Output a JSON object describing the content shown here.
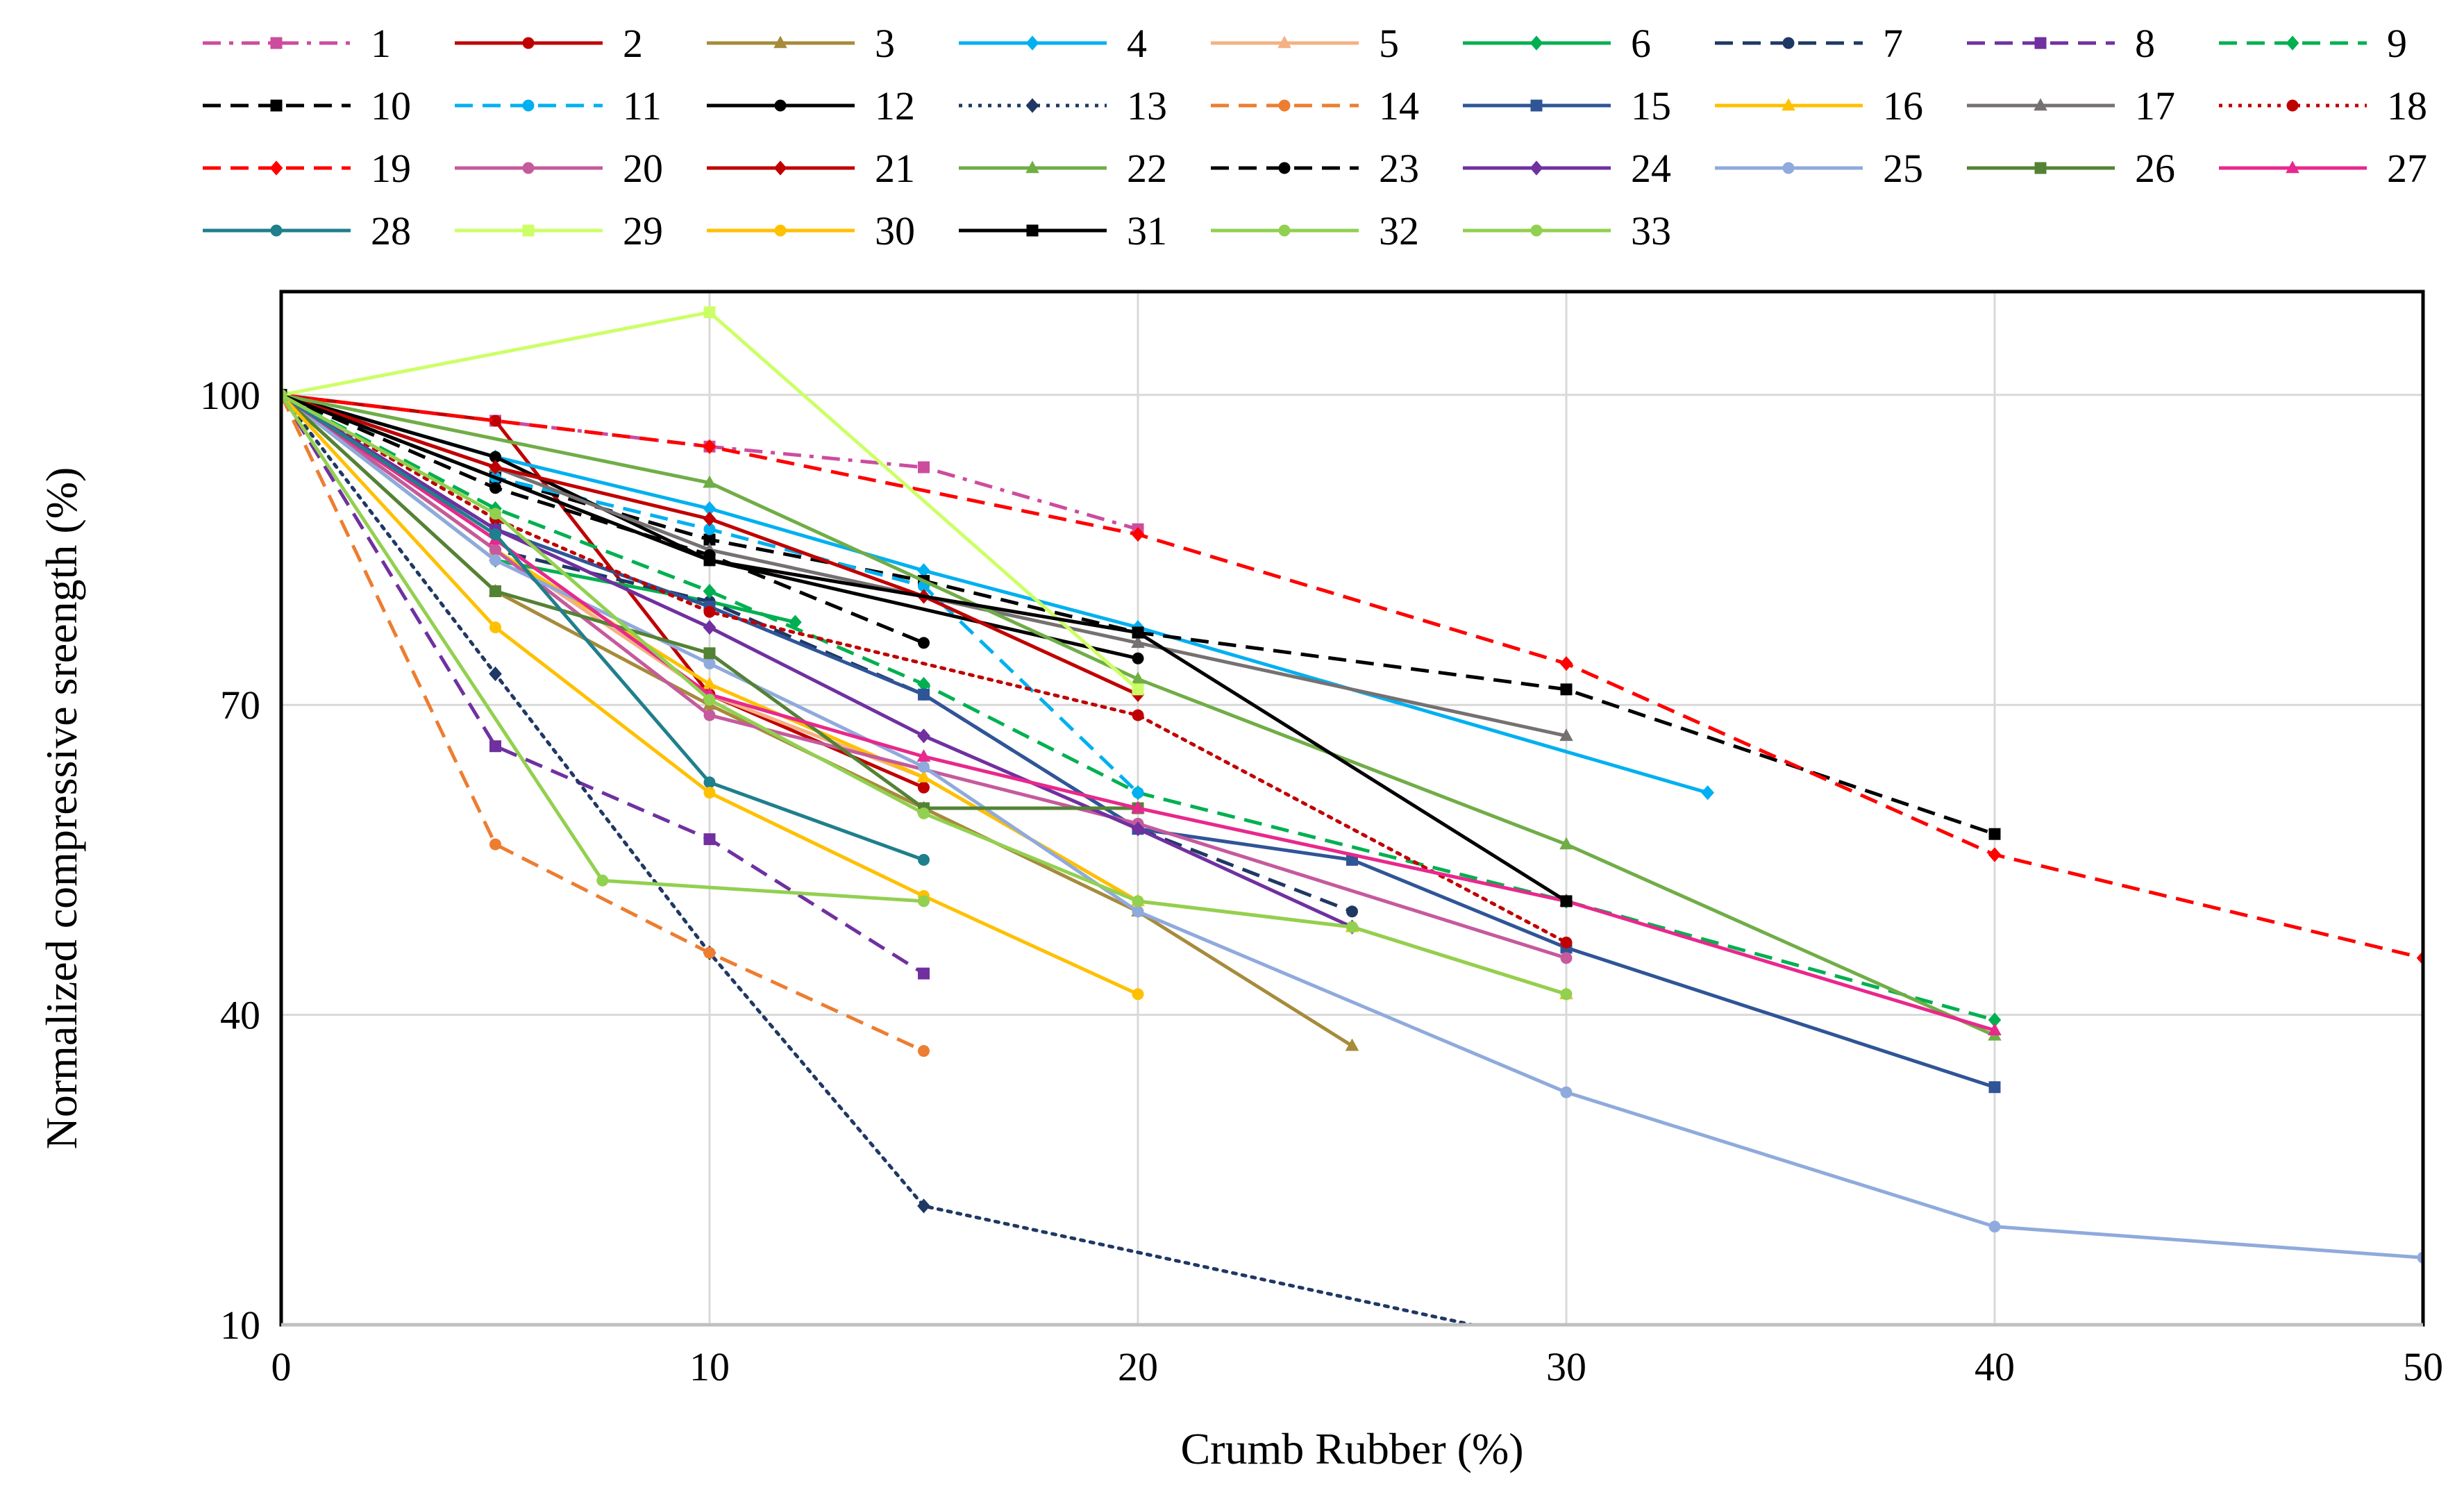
{
  "chart_data": {
    "type": "line",
    "title": "",
    "xlabel": "Crumb Rubber (%)",
    "ylabel": "Normalized compressive sreength (%)",
    "xlim": [
      0,
      50
    ],
    "ylim": [
      10,
      110
    ],
    "xticks": [
      "0",
      "10",
      "20",
      "30",
      "40",
      "50"
    ],
    "yticks": [
      "10",
      "40",
      "70",
      "100"
    ],
    "legend_position": "top",
    "grid": true,
    "series": [
      {
        "name": "1",
        "color": "#CC4C9E",
        "dash": "dashdot",
        "marker": "square",
        "x": [
          0,
          5,
          10,
          15,
          20
        ],
        "y": [
          100,
          97.5,
          95,
          93,
          87
        ]
      },
      {
        "name": "2",
        "color": "#C00000",
        "dash": "solid",
        "marker": "circle",
        "x": [
          0,
          5,
          10,
          15
        ],
        "y": [
          100,
          97.5,
          71,
          62
        ]
      },
      {
        "name": "3",
        "color": "#A68B3B",
        "dash": "solid",
        "marker": "triangle",
        "x": [
          0,
          5,
          10,
          15,
          20,
          25
        ],
        "y": [
          100,
          81,
          70,
          60,
          50,
          37
        ]
      },
      {
        "name": "4",
        "color": "#00B0F0",
        "dash": "solid",
        "marker": "diamond",
        "x": [
          0,
          5,
          10,
          15,
          20,
          33.3
        ],
        "y": [
          100,
          94,
          89,
          83,
          77.5,
          61.5
        ]
      },
      {
        "name": "5",
        "color": "#F4B183",
        "dash": "solid",
        "marker": "triangle",
        "x": [
          0,
          5,
          10,
          15,
          20,
          25,
          30
        ],
        "y": [
          100,
          85,
          71,
          63,
          51,
          48.5,
          42
        ]
      },
      {
        "name": "6",
        "color": "#00B050",
        "dash": "solid",
        "marker": "diamond",
        "x": [
          0,
          5,
          10,
          12
        ],
        "y": [
          100,
          84,
          80,
          78
        ]
      },
      {
        "name": "7",
        "color": "#1F3864",
        "dash": "dash",
        "marker": "circle",
        "x": [
          0,
          5,
          10,
          15,
          20,
          25
        ],
        "y": [
          100,
          85,
          80,
          71,
          58,
          50
        ]
      },
      {
        "name": "8",
        "color": "#7030A0",
        "dash": "dash",
        "marker": "square",
        "x": [
          0,
          5,
          10,
          15
        ],
        "y": [
          100,
          66,
          57,
          44
        ]
      },
      {
        "name": "9",
        "color": "#00B050",
        "dash": "dash",
        "marker": "diamond",
        "x": [
          0,
          5,
          10,
          15,
          20,
          30,
          40
        ],
        "y": [
          100,
          89,
          81,
          72,
          61.5,
          51,
          39.5
        ]
      },
      {
        "name": "10",
        "color": "#000000",
        "dash": "dash",
        "marker": "square",
        "x": [
          0,
          5,
          10,
          15,
          20,
          30,
          40
        ],
        "y": [
          100,
          92,
          86,
          82,
          77,
          71.5,
          57.5
        ]
      },
      {
        "name": "11",
        "color": "#00B0F0",
        "dash": "dash",
        "marker": "circle",
        "x": [
          0,
          5,
          10,
          15,
          20
        ],
        "y": [
          100,
          92,
          87,
          81.5,
          61.5
        ]
      },
      {
        "name": "12",
        "color": "#000000",
        "dash": "solid",
        "marker": "circle",
        "x": [
          0,
          5,
          10,
          20
        ],
        "y": [
          100,
          94,
          84,
          74.5
        ]
      },
      {
        "name": "13",
        "color": "#1F3864",
        "dash": "dot",
        "marker": "diamond",
        "x": [
          0,
          5,
          10,
          15,
          27.8
        ],
        "y": [
          100,
          73,
          46,
          21.5,
          10
        ]
      },
      {
        "name": "14",
        "color": "#ED7D31",
        "dash": "dash",
        "marker": "circle",
        "x": [
          0,
          5,
          10,
          15
        ],
        "y": [
          100,
          56.5,
          46,
          36.5
        ]
      },
      {
        "name": "15",
        "color": "#2F5597",
        "dash": "solid",
        "marker": "square",
        "x": [
          0,
          5,
          10,
          15,
          20,
          25,
          30,
          40
        ],
        "y": [
          100,
          87,
          79.5,
          71,
          58,
          55,
          46.5,
          33
        ]
      },
      {
        "name": "16",
        "color": "#FFC000",
        "dash": "solid",
        "marker": "triangle",
        "x": [
          0,
          5,
          10,
          15,
          20,
          25,
          30
        ],
        "y": [
          100,
          85,
          72,
          63,
          51,
          48.5,
          42
        ]
      },
      {
        "name": "17",
        "color": "#767171",
        "dash": "solid",
        "marker": "triangle",
        "x": [
          0,
          5,
          10,
          20,
          30
        ],
        "y": [
          100,
          93,
          85,
          76,
          67
        ]
      },
      {
        "name": "18",
        "color": "#C00000",
        "dash": "dot",
        "marker": "circle",
        "x": [
          0,
          5,
          10,
          20,
          30
        ],
        "y": [
          100,
          88,
          79,
          69,
          47
        ]
      },
      {
        "name": "19",
        "color": "#FF0000",
        "dash": "dash",
        "marker": "diamond",
        "x": [
          0,
          10,
          20,
          30,
          40,
          50
        ],
        "y": [
          100,
          95,
          86.5,
          74,
          55.5,
          45.5
        ]
      },
      {
        "name": "20",
        "color": "#C55A9D",
        "dash": "solid",
        "marker": "circle",
        "x": [
          0,
          5,
          10,
          20,
          30
        ],
        "y": [
          100,
          85,
          69,
          58.5,
          45.5
        ]
      },
      {
        "name": "21",
        "color": "#C00000",
        "dash": "solid",
        "marker": "diamond",
        "x": [
          0,
          5,
          10,
          15,
          20
        ],
        "y": [
          100,
          93,
          88,
          80.5,
          71
        ]
      },
      {
        "name": "22",
        "color": "#70AD47",
        "dash": "solid",
        "marker": "triangle",
        "x": [
          0,
          10,
          20,
          30,
          40
        ],
        "y": [
          100,
          91.5,
          72.5,
          56.5,
          38
        ]
      },
      {
        "name": "23",
        "color": "#000000",
        "dash": "dash",
        "marker": "circle",
        "x": [
          0,
          5,
          10,
          15
        ],
        "y": [
          100,
          91,
          84.5,
          76
        ]
      },
      {
        "name": "24",
        "color": "#7030A0",
        "dash": "solid",
        "marker": "diamond",
        "x": [
          0,
          5,
          10,
          15,
          20,
          25
        ],
        "y": [
          100,
          87,
          77.5,
          67,
          58,
          48.5
        ]
      },
      {
        "name": "25",
        "color": "#8FAADC",
        "dash": "solid",
        "marker": "circle",
        "x": [
          0,
          5,
          10,
          15,
          20,
          30,
          40,
          50
        ],
        "y": [
          100,
          84,
          74,
          64,
          50,
          32.5,
          19.5,
          16.5
        ]
      },
      {
        "name": "26",
        "color": "#548235",
        "dash": "solid",
        "marker": "square",
        "x": [
          0,
          5,
          10,
          15,
          20
        ],
        "y": [
          100,
          81,
          75,
          60,
          60
        ]
      },
      {
        "name": "27",
        "color": "#E8288C",
        "dash": "solid",
        "marker": "triangle",
        "x": [
          0,
          5,
          10,
          15,
          20,
          30,
          40
        ],
        "y": [
          100,
          86,
          71,
          65,
          60,
          51,
          38.5
        ]
      },
      {
        "name": "28",
        "color": "#1F7F8C",
        "dash": "solid",
        "marker": "circle",
        "x": [
          0,
          5,
          10,
          15
        ],
        "y": [
          100,
          86.5,
          62.5,
          55
        ]
      },
      {
        "name": "29",
        "color": "#CCFF66",
        "dash": "solid",
        "marker": "square",
        "x": [
          0,
          10,
          20
        ],
        "y": [
          100,
          108,
          71.5
        ]
      },
      {
        "name": "30",
        "color": "#FFC000",
        "dash": "solid",
        "marker": "circle",
        "x": [
          0,
          5,
          10,
          15,
          20
        ],
        "y": [
          100,
          77.5,
          61.5,
          51.5,
          42
        ]
      },
      {
        "name": "31",
        "color": "#000000",
        "dash": "solid",
        "marker": "square",
        "x": [
          0,
          10,
          20,
          30
        ],
        "y": [
          100,
          84,
          77,
          51
        ]
      },
      {
        "name": "32",
        "color": "#92D050",
        "dash": "solid",
        "marker": "circle",
        "x": [
          0,
          5,
          10,
          15,
          20,
          25,
          30
        ],
        "y": [
          100,
          88.5,
          70.5,
          59.5,
          51,
          48.5,
          42
        ]
      },
      {
        "name": "33",
        "color": "#92D050",
        "dash": "solid",
        "marker": "circle",
        "x": [
          0,
          7.5,
          15
        ],
        "y": [
          100,
          53,
          51
        ]
      }
    ]
  }
}
